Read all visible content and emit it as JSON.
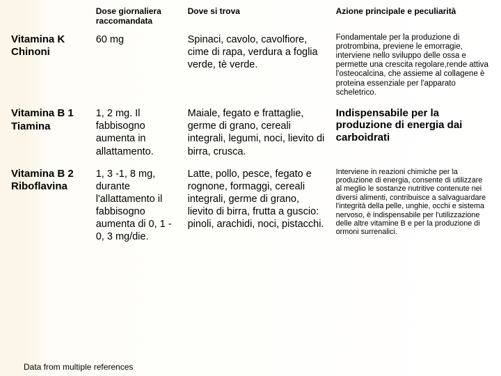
{
  "headers": {
    "dose": "Dose giornaliera raccomandata",
    "where": "Dove si trova",
    "action": "Azione principale e peculiarità"
  },
  "rows": [
    {
      "name": "Vitamina K\nChinoni",
      "dose": "60 mg",
      "where": "Spinaci, cavolo, cavolfiore, cime di rapa, verdura a foglia verde, tè verde.",
      "action": "Fondamentale per la produzione di protrombina, previene le emorragie, interviene nello sviluppo delle ossa e permette una crescita regolare,rende attiva l'osteocalcina, che assieme al collagene è proteina essenziale per l'apparato scheletrico.",
      "action_class": "act-sm"
    },
    {
      "name": "Vitamina B 1\nTiamina",
      "dose": "1, 2 mg. Il fabbisogno aumenta in allattamento.",
      "where": "Maiale, fegato e frattaglie, germe di grano, cereali integrali, legumi, noci, lievito di birra, crusca.",
      "action": "Indispensabile per la produzione di energia dai carboidrati",
      "action_class": "act-md"
    },
    {
      "name": "Vitamina B 2\nRiboflavina",
      "dose": "1, 3 -1, 8 mg, durante l'allattamento il fabbisogno aumenta di 0, 1 - 0, 3 mg/die.",
      "where": "Latte, pollo, pesce, fegato e rognone, formaggi, cereali integrali, germe di grano, lievito di birra, frutta a guscio: pinoli, arachidi, noci, pistacchi.",
      "action": "Interviene in reazioni chimiche per la produzione di energia, consente di utilizzare al meglio le sostanze nutritive contenute nei diversi alimenti, contribuisce a salvaguardare l'integrità della pelle, unghie, occhi e  sistema nervoso, è indispensabile per l'utilizzazione delle altre vitamine B e per la produzione di ormoni surrenalici.",
      "action_class": "act-xs"
    }
  ],
  "footer_note": "Data from multiple references"
}
